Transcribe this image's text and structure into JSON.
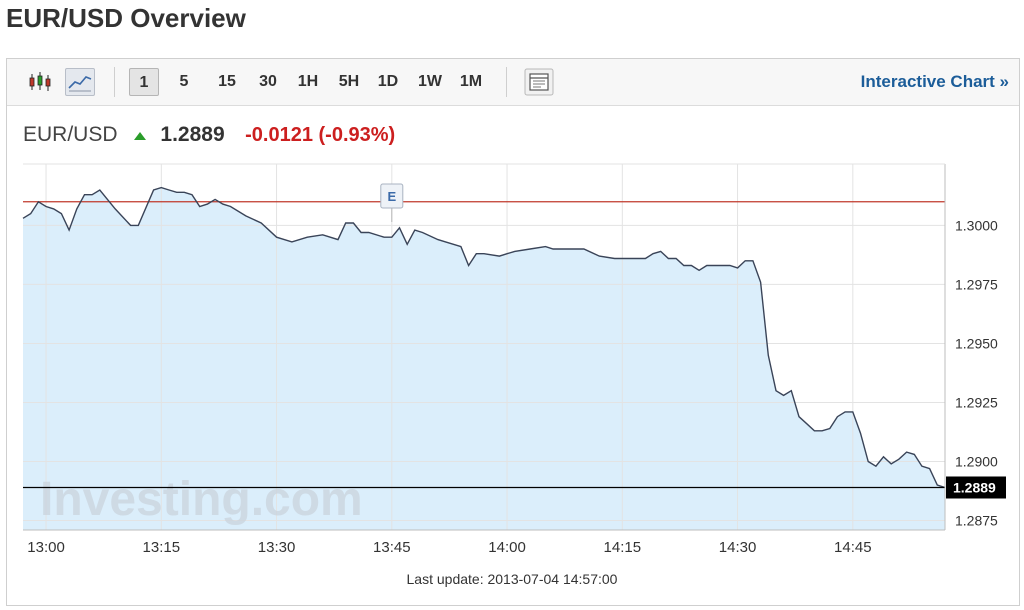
{
  "page": {
    "title": "EUR/USD Overview"
  },
  "toolbar": {
    "intervals": [
      "1",
      "5",
      "15",
      "30",
      "1H",
      "5H",
      "1D",
      "1W",
      "1M"
    ],
    "active_interval": "1",
    "interactive_chart_label": "Interactive Chart »",
    "icons": [
      "candlestick-icon",
      "line-chart-icon",
      "layout-icon"
    ]
  },
  "quote": {
    "symbol": "EUR/USD",
    "price": "1.2889",
    "change": "-0.0121 (-0.93%)",
    "direction_icon": "up-arrow-icon",
    "change_color": "#cc1f1f"
  },
  "chart_data": {
    "type": "area",
    "x_ticks": [
      "13:00",
      "13:15",
      "13:30",
      "13:45",
      "14:00",
      "14:15",
      "14:30",
      "14:45"
    ],
    "y_ticks": [
      1.3,
      1.2975,
      1.295,
      1.2925,
      1.29,
      1.2875
    ],
    "ylim": [
      1.2871,
      1.3026
    ],
    "xlim": [
      "12:57",
      "14:57"
    ],
    "reference_line": 1.301,
    "current_value": 1.2889,
    "current_label": "1.2889",
    "event_marker": {
      "label": "E",
      "time": "13:45"
    },
    "watermark": "Investing.com",
    "grid": true,
    "colors": {
      "line": "#3a4458",
      "fill": "#dbeefb",
      "reference": "#c0392b",
      "current": "#000000"
    },
    "series": [
      {
        "x": [
          "12:57",
          "12:58",
          "12:59",
          "13:00",
          "13:01",
          "13:02",
          "13:03",
          "13:04",
          "13:05",
          "13:06",
          "13:07",
          "13:09",
          "13:11",
          "13:12",
          "13:14",
          "13:15",
          "13:16",
          "13:17",
          "13:18",
          "13:19",
          "13:20",
          "13:21",
          "13:22",
          "13:23",
          "13:24",
          "13:26",
          "13:28",
          "13:30",
          "13:32",
          "13:34",
          "13:36",
          "13:38",
          "13:39",
          "13:40",
          "13:41",
          "13:42",
          "13:44",
          "13:45",
          "13:46",
          "13:47",
          "13:48",
          "13:49",
          "13:51",
          "13:52",
          "13:54",
          "13:55",
          "13:56",
          "13:57",
          "13:59",
          "14:00",
          "14:01",
          "14:03",
          "14:05",
          "14:06",
          "14:08",
          "14:10",
          "14:12",
          "14:14",
          "14:16",
          "14:18",
          "14:19",
          "14:20",
          "14:21",
          "14:22",
          "14:23",
          "14:24",
          "14:25",
          "14:26",
          "14:27",
          "14:28",
          "14:29",
          "14:30",
          "14:31",
          "14:32",
          "14:33",
          "14:34",
          "14:35",
          "14:36",
          "14:37",
          "14:38",
          "14:39",
          "14:40",
          "14:41",
          "14:42",
          "14:43",
          "14:44",
          "14:45",
          "14:46",
          "14:47",
          "14:48",
          "14:49",
          "14:50",
          "14:51",
          "14:52",
          "14:53",
          "14:54",
          "14:55",
          "14:56",
          "14:57"
        ],
        "y": [
          1.3003,
          1.3005,
          1.301,
          1.3008,
          1.3007,
          1.3005,
          1.2998,
          1.3007,
          1.3013,
          1.3013,
          1.3015,
          1.3007,
          1.3,
          1.3,
          1.3015,
          1.3016,
          1.3015,
          1.3014,
          1.3014,
          1.3013,
          1.3008,
          1.3009,
          1.3011,
          1.3009,
          1.3008,
          1.3004,
          1.3001,
          1.2995,
          1.2993,
          1.2995,
          1.2996,
          1.2994,
          1.3001,
          1.3001,
          1.2997,
          1.2997,
          1.2995,
          1.2995,
          1.2999,
          1.2992,
          1.2998,
          1.2997,
          1.2994,
          1.2993,
          1.2991,
          1.2983,
          1.2988,
          1.2988,
          1.2987,
          1.2988,
          1.2989,
          1.299,
          1.2991,
          1.299,
          1.299,
          1.299,
          1.2987,
          1.2986,
          1.2986,
          1.2986,
          1.2988,
          1.2989,
          1.2986,
          1.2986,
          1.2983,
          1.2983,
          1.2981,
          1.2983,
          1.2983,
          1.2983,
          1.2983,
          1.2982,
          1.2985,
          1.2985,
          1.2976,
          1.2945,
          1.293,
          1.2928,
          1.293,
          1.2919,
          1.2916,
          1.2913,
          1.2913,
          1.2914,
          1.2919,
          1.2921,
          1.2921,
          1.2912,
          1.29,
          1.2898,
          1.2902,
          1.2899,
          1.2901,
          1.2904,
          1.2903,
          1.2898,
          1.2897,
          1.289,
          1.2889
        ]
      }
    ]
  },
  "footer": {
    "last_update": "Last update: 2013-07-04 14:57:00"
  }
}
